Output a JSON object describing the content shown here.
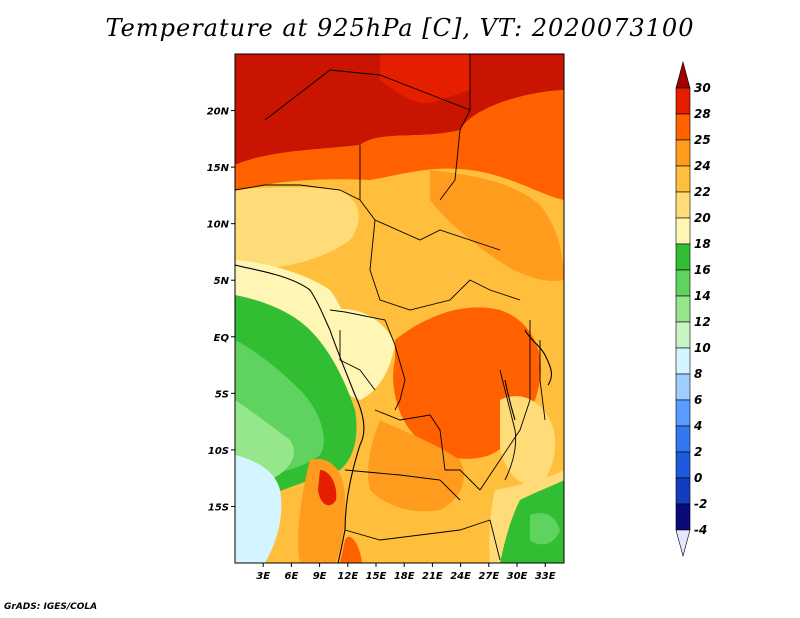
{
  "title": "Temperature at 925hPa [C], VT: 2020073100",
  "credit": "GrADS: IGES/COLA",
  "map": {
    "lon_range": [
      0,
      35
    ],
    "lat_range": [
      -20,
      25
    ],
    "lat_ticks": [
      {
        "value": 20,
        "label": "20N"
      },
      {
        "value": 15,
        "label": "15N"
      },
      {
        "value": 10,
        "label": "10N"
      },
      {
        "value": 5,
        "label": "5N"
      },
      {
        "value": 0,
        "label": "EQ"
      },
      {
        "value": -5,
        "label": "5S"
      },
      {
        "value": -10,
        "label": "10S"
      },
      {
        "value": -15,
        "label": "15S"
      }
    ],
    "lon_ticks": [
      {
        "value": 3,
        "label": "3E"
      },
      {
        "value": 6,
        "label": "6E"
      },
      {
        "value": 9,
        "label": "9E"
      },
      {
        "value": 12,
        "label": "12E"
      },
      {
        "value": 15,
        "label": "15E"
      },
      {
        "value": 18,
        "label": "18E"
      },
      {
        "value": 21,
        "label": "21E"
      },
      {
        "value": 24,
        "label": "24E"
      },
      {
        "value": 27,
        "label": "27E"
      },
      {
        "value": 30,
        "label": "30E"
      },
      {
        "value": 33,
        "label": "33E"
      }
    ]
  },
  "colorbar": {
    "levels": [
      "30",
      "28",
      "25",
      "24",
      "22",
      "20",
      "18",
      "16",
      "14",
      "12",
      "10",
      "8",
      "6",
      "4",
      "2",
      "0",
      "-2",
      "-4"
    ],
    "colors": [
      "#a00000",
      "#e61e00",
      "#ff6000",
      "#ff9c1e",
      "#ffbe3c",
      "#ffdc78",
      "#fff5b4",
      "#32be32",
      "#5fd25f",
      "#96e68c",
      "#c8f5c3",
      "#d2f5ff",
      "#9ecdff",
      "#5a9bff",
      "#3278f0",
      "#1e5adc",
      "#143cbe",
      "#0a0a78",
      "#e6e6ff"
    ]
  }
}
